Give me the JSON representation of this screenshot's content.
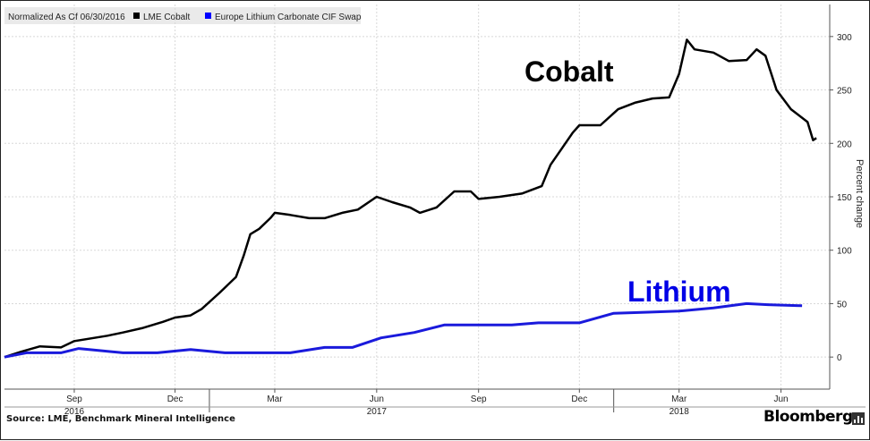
{
  "legend": {
    "normalized": "Normalized As Of 06/30/2016",
    "items": [
      {
        "label": "LME Cobalt",
        "color": "#000000"
      },
      {
        "label": "Europe Lithium Carbonate CIF Swap",
        "color": "#0000ff"
      }
    ]
  },
  "source": "Source: LME, Benchmark Mineral Intelligence",
  "brand": "Bloomberg",
  "chart_data": {
    "type": "line",
    "ylabel": "Percent change",
    "ylim": [
      -30,
      330
    ],
    "yticks": [
      0,
      50,
      100,
      150,
      200,
      250,
      300
    ],
    "xlim": [
      "2016-06-30",
      "2018-07-15"
    ],
    "month_ticks": [
      {
        "label": "Sep",
        "date": "2016-09-01"
      },
      {
        "label": "Dec",
        "date": "2016-12-01"
      },
      {
        "label": "Mar",
        "date": "2017-03-01"
      },
      {
        "label": "Jun",
        "date": "2017-06-01"
      },
      {
        "label": "Sep",
        "date": "2017-09-01"
      },
      {
        "label": "Dec",
        "date": "2017-12-01"
      },
      {
        "label": "Mar",
        "date": "2018-03-01"
      },
      {
        "label": "Jun",
        "date": "2018-06-01"
      }
    ],
    "year_labels": [
      {
        "label": "2016",
        "date": "2016-09-01"
      },
      {
        "label": "2017",
        "date": "2017-06-01"
      },
      {
        "label": "2018",
        "date": "2018-03-01"
      }
    ],
    "series": [
      {
        "name": "Cobalt",
        "color": "#000000",
        "points": [
          [
            "2016-06-30",
            0
          ],
          [
            "2016-07-15",
            5
          ],
          [
            "2016-08-01",
            10
          ],
          [
            "2016-08-20",
            9
          ],
          [
            "2016-09-01",
            15
          ],
          [
            "2016-10-01",
            20
          ],
          [
            "2016-10-15",
            23
          ],
          [
            "2016-11-01",
            27
          ],
          [
            "2016-11-20",
            33
          ],
          [
            "2016-12-01",
            37
          ],
          [
            "2016-12-15",
            39
          ],
          [
            "2016-12-25",
            45
          ],
          [
            "2017-01-10",
            60
          ],
          [
            "2017-01-25",
            75
          ],
          [
            "2017-02-01",
            95
          ],
          [
            "2017-02-07",
            115
          ],
          [
            "2017-02-15",
            120
          ],
          [
            "2017-02-25",
            130
          ],
          [
            "2017-03-01",
            135
          ],
          [
            "2017-03-15",
            133
          ],
          [
            "2017-04-01",
            130
          ],
          [
            "2017-04-15",
            130
          ],
          [
            "2017-05-01",
            135
          ],
          [
            "2017-05-15",
            138
          ],
          [
            "2017-06-01",
            150
          ],
          [
            "2017-06-15",
            145
          ],
          [
            "2017-07-01",
            140
          ],
          [
            "2017-07-10",
            135
          ],
          [
            "2017-07-25",
            140
          ],
          [
            "2017-08-10",
            155
          ],
          [
            "2017-08-25",
            155
          ],
          [
            "2017-09-01",
            148
          ],
          [
            "2017-09-20",
            150
          ],
          [
            "2017-10-10",
            153
          ],
          [
            "2017-10-28",
            160
          ],
          [
            "2017-11-05",
            180
          ],
          [
            "2017-11-15",
            195
          ],
          [
            "2017-11-25",
            210
          ],
          [
            "2017-12-01",
            217
          ],
          [
            "2017-12-20",
            217
          ],
          [
            "2018-01-05",
            232
          ],
          [
            "2018-01-20",
            238
          ],
          [
            "2018-02-05",
            242
          ],
          [
            "2018-02-20",
            243
          ],
          [
            "2018-03-01",
            265
          ],
          [
            "2018-03-08",
            297
          ],
          [
            "2018-03-15",
            288
          ],
          [
            "2018-04-01",
            285
          ],
          [
            "2018-04-15",
            277
          ],
          [
            "2018-05-01",
            278
          ],
          [
            "2018-05-10",
            288
          ],
          [
            "2018-05-18",
            282
          ],
          [
            "2018-05-28",
            250
          ],
          [
            "2018-06-10",
            232
          ],
          [
            "2018-06-25",
            220
          ],
          [
            "2018-06-30",
            203
          ],
          [
            "2018-07-03",
            205
          ]
        ]
      },
      {
        "name": "Lithium",
        "color": "#1a1adc",
        "points": [
          [
            "2016-06-30",
            0
          ],
          [
            "2016-07-20",
            4
          ],
          [
            "2016-08-20",
            4
          ],
          [
            "2016-09-05",
            8
          ],
          [
            "2016-10-15",
            4
          ],
          [
            "2016-11-15",
            4
          ],
          [
            "2016-12-15",
            7
          ],
          [
            "2017-01-15",
            4
          ],
          [
            "2017-02-20",
            4
          ],
          [
            "2017-03-15",
            4
          ],
          [
            "2017-04-15",
            9
          ],
          [
            "2017-05-10",
            9
          ],
          [
            "2017-06-05",
            18
          ],
          [
            "2017-07-05",
            23
          ],
          [
            "2017-08-01",
            30
          ],
          [
            "2017-09-01",
            30
          ],
          [
            "2017-10-01",
            30
          ],
          [
            "2017-10-25",
            32
          ],
          [
            "2017-12-01",
            32
          ],
          [
            "2018-01-01",
            41
          ],
          [
            "2018-02-01",
            42
          ],
          [
            "2018-03-01",
            43
          ],
          [
            "2018-04-01",
            46
          ],
          [
            "2018-05-01",
            50
          ],
          [
            "2018-05-20",
            49
          ],
          [
            "2018-06-20",
            48
          ]
        ]
      }
    ],
    "annotations": [
      {
        "text": "Cobalt",
        "color": "#000000"
      },
      {
        "text": "Lithium",
        "color": "#0000e6"
      }
    ]
  }
}
